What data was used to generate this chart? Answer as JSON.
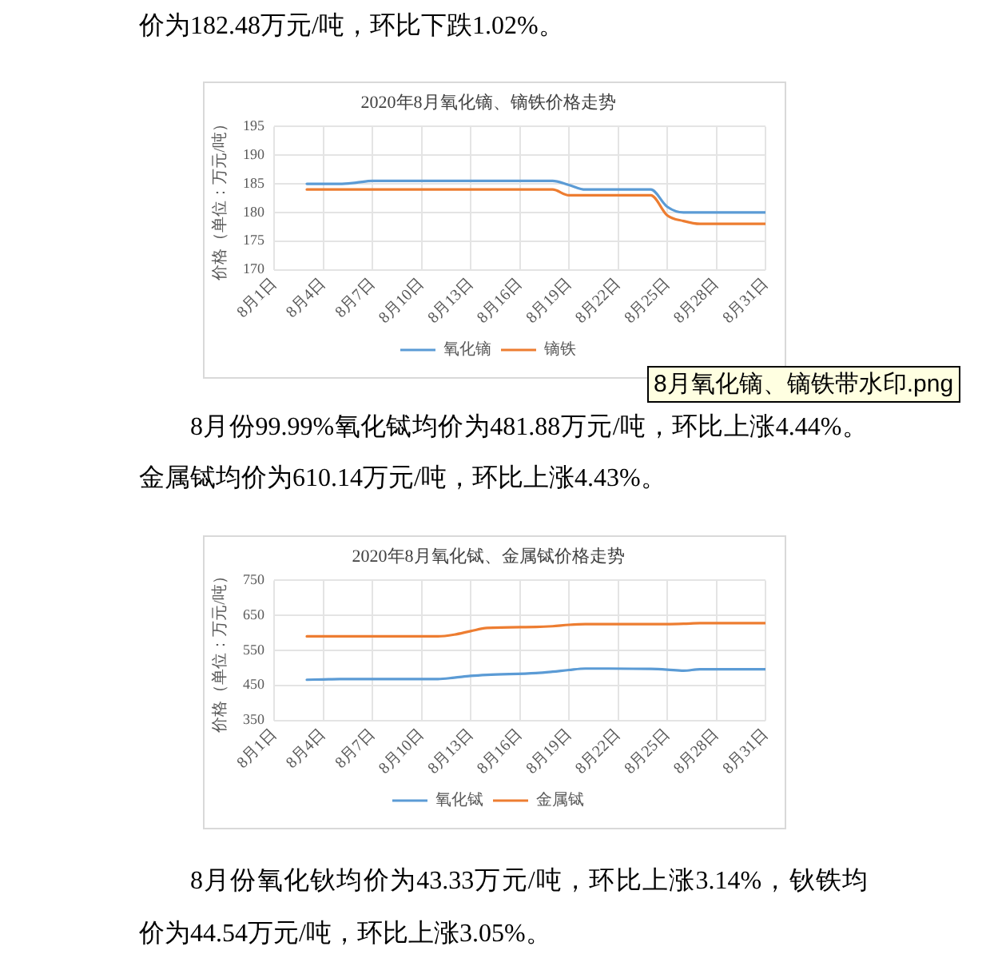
{
  "chart_data": [
    {
      "type": "line",
      "title": "2020年8月氧化镝、镝铁价格走势",
      "ylabel": "价格（单位：万元/吨）",
      "x": [
        "--08-03",
        "--08-04",
        "--08-05",
        "--08-06",
        "--08-07",
        "--08-10",
        "--08-11",
        "--08-12",
        "--08-13",
        "--08-14",
        "--08-17",
        "--08-18",
        "--08-19",
        "--08-20",
        "--08-21",
        "--08-24",
        "--08-25",
        "--08-26",
        "--08-27",
        "--08-28",
        "--08-31"
      ],
      "series": [
        {
          "name": "氧化镝",
          "color": "#5b9bd5",
          "values": [
            185,
            185,
            185,
            185.2,
            185.5,
            185.5,
            185.5,
            185.5,
            185.5,
            185.5,
            185.5,
            185.5,
            184.8,
            184,
            184,
            184,
            181,
            180,
            180,
            180,
            180
          ]
        },
        {
          "name": "镝铁",
          "color": "#ed7d31",
          "values": [
            184,
            184,
            184,
            184,
            184,
            184,
            184,
            184,
            184,
            184,
            184,
            184,
            183,
            183,
            183,
            183,
            179.5,
            178.5,
            178,
            178,
            178
          ]
        }
      ],
      "xlim": [
        "--08-01",
        "--08-31"
      ],
      "xticks": [
        {
          "value": "--08-01",
          "label": "8月1日"
        },
        {
          "value": "--08-04",
          "label": "8月4日"
        },
        {
          "value": "--08-07",
          "label": "8月7日"
        },
        {
          "value": "--08-10",
          "label": "8月10日"
        },
        {
          "value": "--08-13",
          "label": "8月13日"
        },
        {
          "value": "--08-16",
          "label": "8月16日"
        },
        {
          "value": "--08-19",
          "label": "8月19日"
        },
        {
          "value": "--08-22",
          "label": "8月22日"
        },
        {
          "value": "--08-25",
          "label": "8月25日"
        },
        {
          "value": "--08-28",
          "label": "8月28日"
        },
        {
          "value": "--08-31",
          "label": "8月31日"
        }
      ],
      "ylim": [
        170,
        195
      ],
      "yticks": [
        170,
        175,
        180,
        185,
        190,
        195
      ],
      "grid": true,
      "legend": "bottom",
      "marker": "none",
      "line_style": "solid",
      "annotations": [
        "价为182.48万元/吨，环比下跌1.02%。",
        "8月氧化镝、镝铁带水印.png"
      ]
    },
    {
      "type": "line",
      "title": "2020年8月氧化铽、金属铽价格走势",
      "ylabel": "价格（单位：万元/吨）",
      "x": [
        "--08-03",
        "--08-04",
        "--08-05",
        "--08-06",
        "--08-07",
        "--08-10",
        "--08-11",
        "--08-12",
        "--08-13",
        "--08-14",
        "--08-17",
        "--08-18",
        "--08-19",
        "--08-20",
        "--08-21",
        "--08-24",
        "--08-25",
        "--08-26",
        "--08-27",
        "--08-28",
        "--08-31"
      ],
      "series": [
        {
          "name": "氧化铽",
          "color": "#5b9bd5",
          "values": [
            466,
            467,
            468,
            468,
            468,
            468,
            468,
            472,
            477,
            480,
            485,
            489,
            494,
            498,
            498,
            497,
            495,
            492,
            496,
            496,
            496
          ]
        },
        {
          "name": "金属铽",
          "color": "#ed7d31",
          "values": [
            590,
            590,
            590,
            590,
            590,
            590,
            590,
            595,
            605,
            614,
            617,
            619,
            623,
            625,
            625,
            625,
            625,
            626,
            628,
            628,
            628
          ]
        }
      ],
      "xlim": [
        "--08-01",
        "--08-31"
      ],
      "xticks": [
        {
          "value": "--08-01",
          "label": "8月1日"
        },
        {
          "value": "--08-04",
          "label": "8月4日"
        },
        {
          "value": "--08-07",
          "label": "8月7日"
        },
        {
          "value": "--08-10",
          "label": "8月10日"
        },
        {
          "value": "--08-13",
          "label": "8月13日"
        },
        {
          "value": "--08-16",
          "label": "8月16日"
        },
        {
          "value": "--08-19",
          "label": "8月19日"
        },
        {
          "value": "--08-22",
          "label": "8月22日"
        },
        {
          "value": "--08-25",
          "label": "8月25日"
        },
        {
          "value": "--08-28",
          "label": "8月28日"
        },
        {
          "value": "--08-31",
          "label": "8月31日"
        }
      ],
      "ylim": [
        350,
        750
      ],
      "yticks": [
        350,
        450,
        550,
        650,
        750
      ],
      "grid": true,
      "legend": "bottom",
      "marker": "none",
      "line_style": "solid",
      "annotations": [
        "8月份99.99%氧化铽均价为481.88万元/吨，环比上涨4.44%。金属铽均价为610.14万元/吨，环比上涨4.43%。",
        "8月份氧化钬均价为43.33万元/吨，环比上涨3.14%，钬铁均价为44.54万元/吨，环比上涨3.05%。"
      ]
    }
  ]
}
